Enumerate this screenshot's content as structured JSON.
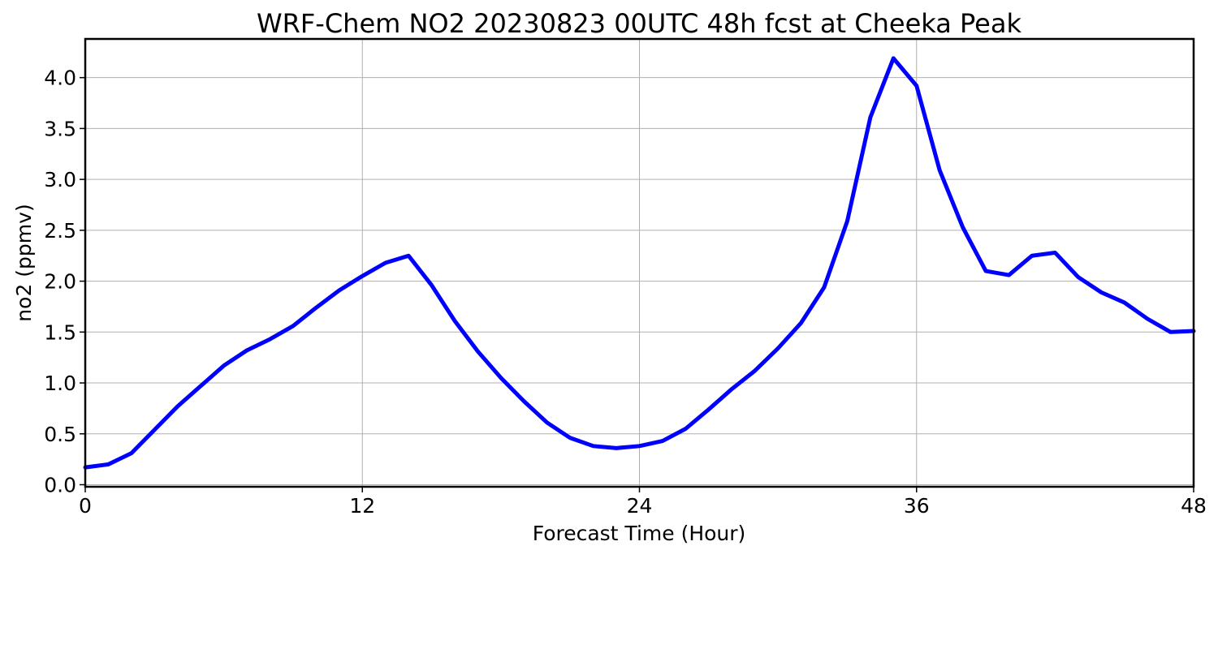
{
  "chart_data": {
    "type": "line",
    "title": "WRF-Chem NO2  20230823 00UTC 48h fcst at Cheeka Peak",
    "xlabel": "Forecast Time (Hour)",
    "ylabel": "no2  (ppmv)",
    "xlim": [
      0,
      48
    ],
    "ylim": [
      -0.02,
      4.38
    ],
    "xticks": [
      0,
      12,
      24,
      36,
      48
    ],
    "xtick_labels": [
      "0",
      "12",
      "24",
      "36",
      "48"
    ],
    "yticks": [
      0.0,
      0.5,
      1.0,
      1.5,
      2.0,
      2.5,
      3.0,
      3.5,
      4.0
    ],
    "ytick_labels": [
      "0.0",
      "0.5",
      "1.0",
      "1.5",
      "2.0",
      "2.5",
      "3.0",
      "3.5",
      "4.0"
    ],
    "grid": true,
    "series": [
      {
        "color": "#0000ff",
        "x": [
          0,
          1,
          2,
          3,
          4,
          5,
          6,
          7,
          8,
          9,
          10,
          11,
          12,
          13,
          14,
          15,
          16,
          17,
          18,
          19,
          20,
          21,
          22,
          23,
          24,
          25,
          26,
          27,
          28,
          29,
          30,
          31,
          32,
          33,
          34,
          35,
          36,
          37,
          38,
          39,
          40,
          41,
          42,
          43,
          44,
          45,
          46,
          47,
          48
        ],
        "values": [
          0.17,
          0.2,
          0.31,
          0.54,
          0.77,
          0.97,
          1.17,
          1.32,
          1.43,
          1.56,
          1.74,
          1.91,
          2.05,
          2.18,
          2.25,
          1.96,
          1.61,
          1.31,
          1.05,
          0.82,
          0.61,
          0.46,
          0.38,
          0.36,
          0.38,
          0.43,
          0.55,
          0.74,
          0.94,
          1.12,
          1.34,
          1.59,
          1.94,
          2.59,
          3.61,
          4.19,
          3.92,
          3.09,
          2.53,
          2.1,
          2.06,
          2.25,
          2.28,
          2.04,
          1.89,
          1.79,
          1.63,
          1.5,
          1.51
        ]
      }
    ]
  }
}
